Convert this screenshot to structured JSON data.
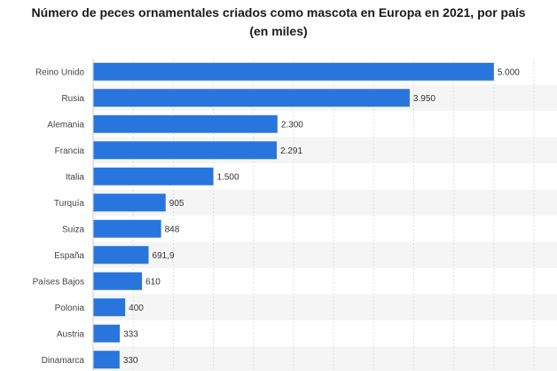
{
  "title_line1": "Número de peces ornamentales criados como mascota en Europa en 2021, por país",
  "title_line2": "(en miles)",
  "chart_data": {
    "type": "bar",
    "orientation": "horizontal",
    "title": "Número de peces ornamentales criados como mascota en Europa en 2021, por país (en miles)",
    "categories": [
      "Reino Unido",
      "Rusia",
      "Alemania",
      "Francia",
      "Italia",
      "Turquía",
      "Suiza",
      "España",
      "Países Bajos",
      "Polonia",
      "Austria",
      "Dinamarca"
    ],
    "values": [
      5000,
      3950,
      2300,
      2291,
      1500,
      905,
      848,
      691.9,
      610,
      400,
      333,
      330
    ],
    "value_labels": [
      "5.000",
      "3.950",
      "2.300",
      "2.291",
      "1.500",
      "905",
      "848",
      "691,9",
      "610",
      "400",
      "333",
      "330"
    ],
    "xlim": [
      0,
      5500
    ],
    "grid": true,
    "bar_color": "#2876dd",
    "stripe_color": "#f5f5f5"
  }
}
